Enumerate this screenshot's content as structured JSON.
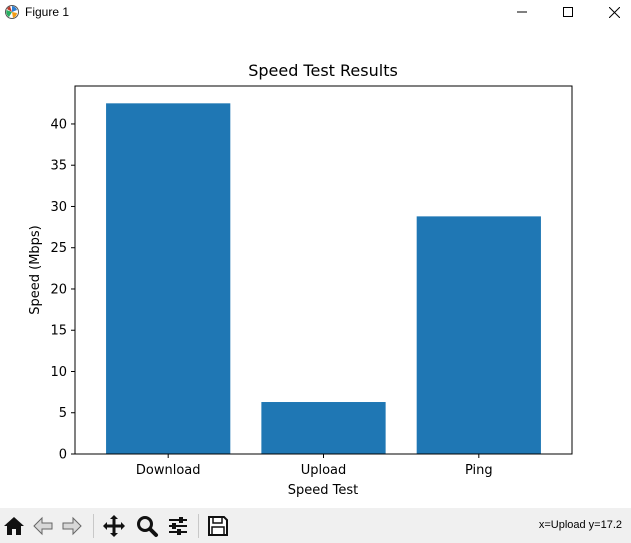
{
  "window": {
    "title": "Figure 1"
  },
  "toolbar": {
    "buttons": [
      "home-icon",
      "back-icon",
      "forward-icon",
      "pan-icon",
      "zoom-icon",
      "configure-subplots-icon",
      "save-icon"
    ],
    "coords": "x=Upload y=17.2"
  },
  "colors": {
    "bar": "#1f77b4",
    "toolbar_bg": "#f0f0f0"
  },
  "chart_data": {
    "type": "bar",
    "title": "Speed Test Results",
    "xlabel": "Speed Test",
    "ylabel": "Speed (Mbps)",
    "categories": [
      "Download",
      "Upload",
      "Ping"
    ],
    "values": [
      42.5,
      6.3,
      28.8
    ],
    "ylim": [
      0,
      44.6
    ],
    "yticks": [
      0,
      5,
      10,
      15,
      20,
      25,
      30,
      35,
      40
    ],
    "grid": false,
    "legend": "none"
  }
}
